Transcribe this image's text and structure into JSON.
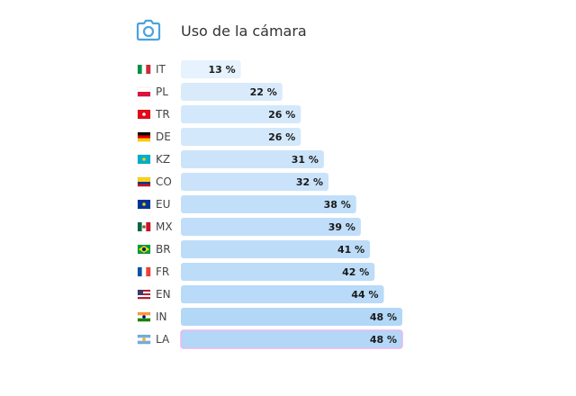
{
  "header": {
    "title": "Uso de la cámara",
    "icon": "camera-icon"
  },
  "chart_data": {
    "type": "bar",
    "orientation": "horizontal",
    "title": "Uso de la cámara",
    "xlabel": "",
    "ylabel": "",
    "xlim": [
      0,
      48
    ],
    "value_suffix": " %",
    "categories": [
      "IT",
      "PL",
      "TR",
      "DE",
      "KZ",
      "CO",
      "EU",
      "MX",
      "BR",
      "FR",
      "EN",
      "IN",
      "LA"
    ],
    "flags": [
      "it-flag-icon",
      "pl-flag-icon",
      "tr-flag-icon",
      "de-flag-icon",
      "kz-flag-icon",
      "co-flag-icon",
      "eu-flag-icon",
      "mx-flag-icon",
      "br-flag-icon",
      "fr-flag-icon",
      "us-flag-icon",
      "in-flag-icon",
      "ar-flag-icon"
    ],
    "values": [
      13,
      22,
      26,
      26,
      31,
      32,
      38,
      39,
      41,
      42,
      44,
      48,
      48
    ],
    "highlighted": "LA",
    "colors": {
      "bar_low": "#e6f2fd",
      "bar_high": "#b3d7f7",
      "highlight_border": "#f0b3f0",
      "accent": "#4aa3df"
    }
  }
}
